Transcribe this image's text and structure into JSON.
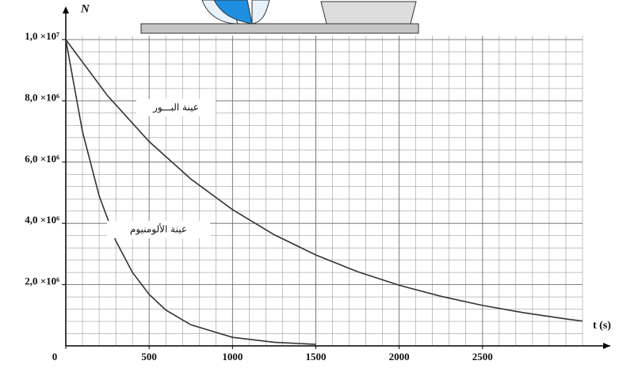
{
  "chart_data": {
    "type": "line",
    "y_label": "N",
    "x_label": "t (s)",
    "xlim": [
      0,
      3100
    ],
    "ylim": [
      0,
      10000000
    ],
    "xticks": [
      0,
      500,
      1000,
      1500,
      2000,
      2500
    ],
    "yticks": [
      {
        "value": 2000000,
        "label": "2,0 ×10⁶"
      },
      {
        "value": 4000000,
        "label": "4,0 ×10⁶"
      },
      {
        "value": 6000000,
        "label": "6,0 ×10⁶"
      },
      {
        "value": 8000000,
        "label": "8,0 ×10⁶"
      },
      {
        "value": 10000000,
        "label": "1,0 ×10⁷"
      }
    ],
    "grid": true,
    "series": [
      {
        "name": "عينة البـــور",
        "color": "#333333",
        "x": [
          0,
          250,
          500,
          750,
          1000,
          1250,
          1500,
          1750,
          2000,
          2250,
          2500,
          2750,
          3000,
          3100
        ],
        "values": [
          10000000,
          8170000,
          6670000,
          5450000,
          4450000,
          3630000,
          2970000,
          2420000,
          1980000,
          1620000,
          1320000,
          1080000,
          880000,
          810000
        ]
      },
      {
        "name": "عينة الألومنيوم",
        "color": "#333333",
        "x": [
          0,
          100,
          200,
          300,
          400,
          500,
          600,
          750,
          1000,
          1250,
          1500
        ],
        "values": [
          10000000,
          7000000,
          4900000,
          3430000,
          2400000,
          1680000,
          1170000,
          690000,
          280000,
          120000,
          50000
        ]
      }
    ]
  }
}
